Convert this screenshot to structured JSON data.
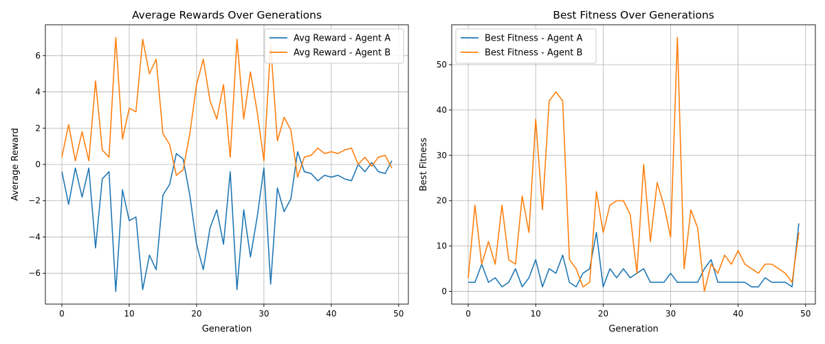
{
  "chart_data": [
    {
      "type": "line",
      "title": "Average Rewards Over Generations",
      "xlabel": "Generation",
      "ylabel": "Average Reward",
      "xlim": [
        -2.45,
        51.45
      ],
      "ylim": [
        -7.7,
        7.7
      ],
      "xticks": [
        0,
        10,
        20,
        30,
        40,
        50
      ],
      "yticks": [
        -6,
        -4,
        -2,
        0,
        2,
        4,
        6
      ],
      "ytick_labels": [
        "−6",
        "−4",
        "−2",
        "0",
        "2",
        "4",
        "6"
      ],
      "grid": true,
      "legend_position": "top-right",
      "x": [
        0,
        1,
        2,
        3,
        4,
        5,
        6,
        7,
        8,
        9,
        10,
        11,
        12,
        13,
        14,
        15,
        16,
        17,
        18,
        19,
        20,
        21,
        22,
        23,
        24,
        25,
        26,
        27,
        28,
        29,
        30,
        31,
        32,
        33,
        34,
        35,
        36,
        37,
        38,
        39,
        40,
        41,
        42,
        43,
        44,
        45,
        46,
        47,
        48,
        49
      ],
      "series": [
        {
          "name": "Avg Reward - Agent A",
          "color": "#1f77b4",
          "values": [
            -0.4,
            -2.2,
            -0.2,
            -1.8,
            -0.2,
            -4.6,
            -0.8,
            -0.4,
            -7.0,
            -1.4,
            -3.1,
            -2.9,
            -6.9,
            -5.0,
            -5.8,
            -1.7,
            -1.1,
            0.6,
            0.3,
            -1.7,
            -4.4,
            -5.8,
            -3.5,
            -2.5,
            -4.4,
            -0.4,
            -6.9,
            -2.5,
            -5.1,
            -2.9,
            -0.2,
            -6.6,
            -1.3,
            -2.6,
            -1.9,
            0.7,
            -0.4,
            -0.5,
            -0.9,
            -0.6,
            -0.7,
            -0.6,
            -0.8,
            -0.9,
            0.0,
            -0.4,
            0.1,
            -0.4,
            -0.5,
            0.2
          ]
        },
        {
          "name": "Avg Reward - Agent B",
          "color": "#ff7f0e",
          "values": [
            0.4,
            2.2,
            0.2,
            1.8,
            0.2,
            4.6,
            0.8,
            0.4,
            7.0,
            1.4,
            3.1,
            2.9,
            6.9,
            5.0,
            5.8,
            1.7,
            1.1,
            -0.6,
            -0.3,
            1.7,
            4.4,
            5.8,
            3.5,
            2.5,
            4.4,
            0.4,
            6.9,
            2.5,
            5.1,
            2.9,
            0.2,
            6.6,
            1.3,
            2.6,
            1.9,
            -0.7,
            0.4,
            0.5,
            0.9,
            0.6,
            0.7,
            0.6,
            0.8,
            0.9,
            0.0,
            0.4,
            -0.1,
            0.4,
            0.5,
            -0.2
          ]
        }
      ]
    },
    {
      "type": "line",
      "title": "Best Fitness Over Generations",
      "xlabel": "Generation",
      "ylabel": "Best Fitness",
      "xlim": [
        -2.45,
        51.45
      ],
      "ylim": [
        -2.8,
        58.8
      ],
      "xticks": [
        0,
        10,
        20,
        30,
        40,
        50
      ],
      "yticks": [
        0,
        10,
        20,
        30,
        40,
        50
      ],
      "ytick_labels": [
        "0",
        "10",
        "20",
        "30",
        "40",
        "50"
      ],
      "grid": true,
      "legend_position": "top-left",
      "x": [
        0,
        1,
        2,
        3,
        4,
        5,
        6,
        7,
        8,
        9,
        10,
        11,
        12,
        13,
        14,
        15,
        16,
        17,
        18,
        19,
        20,
        21,
        22,
        23,
        24,
        25,
        26,
        27,
        28,
        29,
        30,
        31,
        32,
        33,
        34,
        35,
        36,
        37,
        38,
        39,
        40,
        41,
        42,
        43,
        44,
        45,
        46,
        47,
        48,
        49
      ],
      "series": [
        {
          "name": "Best Fitness - Agent A",
          "color": "#1f77b4",
          "values": [
            2,
            2,
            6,
            2,
            3,
            1,
            2,
            5,
            1,
            3,
            7,
            1,
            5,
            4,
            8,
            2,
            1,
            4,
            5,
            13,
            1,
            5,
            3,
            5,
            3,
            4,
            5,
            2,
            2,
            2,
            4,
            2,
            2,
            2,
            2,
            5,
            7,
            2,
            2,
            2,
            2,
            2,
            1,
            1,
            3,
            2,
            2,
            2,
            1,
            15
          ]
        },
        {
          "name": "Best Fitness - Agent B",
          "color": "#ff7f0e",
          "values": [
            3,
            19,
            6,
            11,
            6,
            19,
            7,
            6,
            21,
            13,
            38,
            18,
            42,
            44,
            42,
            7,
            5,
            1,
            2,
            22,
            13,
            19,
            20,
            20,
            17,
            4,
            28,
            11,
            24,
            19,
            12,
            56,
            5,
            18,
            14,
            0,
            6,
            4,
            8,
            6,
            9,
            6,
            5,
            4,
            6,
            6,
            5,
            4,
            2,
            13
          ]
        }
      ]
    }
  ]
}
